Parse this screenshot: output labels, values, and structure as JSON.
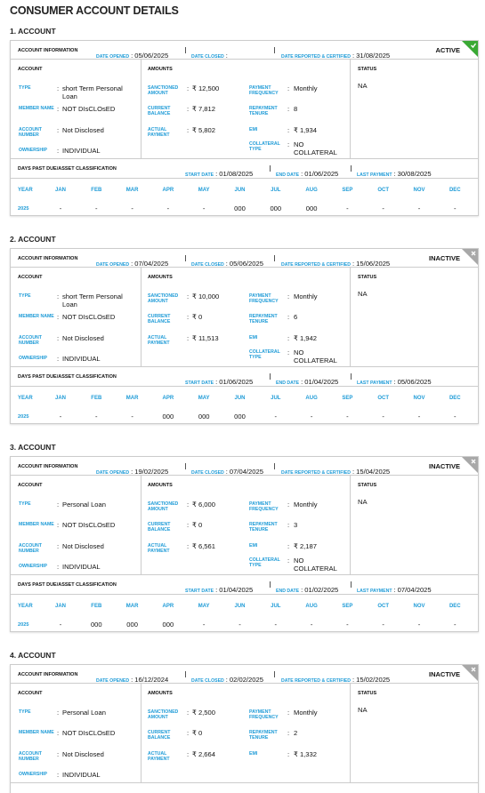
{
  "title": "CONSUMER ACCOUNT DETAILS",
  "labels": {
    "info": "ACCOUNT INFORMATION",
    "date_opened": "DATE OPENED",
    "date_closed": "DATE CLOSED",
    "date_reported": "DATE REPORTED & CERTIFIED",
    "account_col": "ACCOUNT",
    "amounts": "AMOUNTS",
    "status": "STATUS",
    "type": "TYPE",
    "member_name": "MEMBER NAME",
    "account_number": "ACCOUNT NUMBER",
    "ownership": "OWNERSHIP",
    "sanctioned": "SANCTIONED AMOUNT",
    "current_balance": "CURRENT BALANCE",
    "actual_payment": "ACTUAL PAYMENT",
    "payment_frequency": "PAYMENT FREQUENCY",
    "repayment_tenure": "REPAYMENT TENURE",
    "emi": "EMI",
    "collateral_type": "COLLATERAL TYPE",
    "dpd": "DAYS PAST DUE/ASSET CLASSIFICATION",
    "start_date": "START DATE",
    "end_date": "END DATE",
    "last_payment": "LAST PAYMENT",
    "sep": ":",
    "year": "YEAR",
    "months": [
      "JAN",
      "FEB",
      "MAR",
      "APR",
      "MAY",
      "JUN",
      "JUL",
      "AUG",
      "SEP",
      "OCT",
      "NOV",
      "DEC"
    ]
  },
  "accounts": [
    {
      "heading": "1. ACCOUNT",
      "date_opened": "05/06/2025",
      "date_reported": "31/08/2025",
      "badge": "ACTIVE",
      "type": "short Term Personal Loan",
      "member_name": "NOT DIsCLOsED",
      "account_number": "Not Disclosed",
      "ownership": "INDIVIDUAL",
      "sanctioned": "₹ 12,500",
      "current_balance": "₹ 7,812",
      "actual_payment": "₹ 5,802",
      "payment_frequency": "Monthly",
      "repayment_tenure": "8",
      "emi": "₹ 1,934",
      "collateral_type": "NO COLLATERAL",
      "status": "NA",
      "dpd": {
        "start_date": "01/08/2025",
        "end_date": "01/06/2025",
        "last_payment": "30/08/2025",
        "year": "2025",
        "months": [
          "-",
          "-",
          "-",
          "-",
          "-",
          "000",
          "000",
          "000",
          "-",
          "-",
          "-",
          "-"
        ]
      }
    },
    {
      "heading": "2. ACCOUNT",
      "date_opened": "07/04/2025",
      "date_closed": "05/06/2025",
      "date_reported": "15/06/2025",
      "badge": "INACTIVE",
      "type": "short Term Personal Loan",
      "member_name": "NOT DIsCLOsED",
      "account_number": "Not Disclosed",
      "ownership": "INDIVIDUAL",
      "sanctioned": "₹ 10,000",
      "current_balance": "₹ 0",
      "actual_payment": "₹ 11,513",
      "payment_frequency": "Monthly",
      "repayment_tenure": "6",
      "emi": "₹ 1,942",
      "collateral_type": "NO COLLATERAL",
      "status": "NA",
      "dpd": {
        "start_date": "01/06/2025",
        "end_date": "01/04/2025",
        "last_payment": "05/06/2025",
        "year": "2025",
        "months": [
          "-",
          "-",
          "-",
          "000",
          "000",
          "000",
          "-",
          "-",
          "-",
          "-",
          "-",
          "-"
        ]
      }
    },
    {
      "heading": "3. ACCOUNT",
      "date_opened": "19/02/2025",
      "date_closed": "07/04/2025",
      "date_reported": "15/04/2025",
      "badge": "INACTIVE",
      "type": "Personal Loan",
      "member_name": "NOT DIsCLOsED",
      "account_number": "Not Disclosed",
      "ownership": "INDIVIDUAL",
      "sanctioned": "₹ 6,000",
      "current_balance": "₹ 0",
      "actual_payment": "₹ 6,561",
      "payment_frequency": "Monthly",
      "repayment_tenure": "3",
      "emi": "₹ 2,187",
      "collateral_type": "NO COLLATERAL",
      "status": "NA",
      "dpd": {
        "start_date": "01/04/2025",
        "end_date": "01/02/2025",
        "last_payment": "07/04/2025",
        "year": "2025",
        "months": [
          "-",
          "000",
          "000",
          "000",
          "-",
          "-",
          "-",
          "-",
          "-",
          "-",
          "-",
          "-"
        ]
      }
    },
    {
      "heading": "4. ACCOUNT",
      "date_opened": "16/12/2024",
      "date_closed": "02/02/2025",
      "date_reported": "15/02/2025",
      "badge": "INACTIVE",
      "type": "Personal Loan",
      "member_name": "NOT DIsCLOsED",
      "account_number": "Not Disclosed",
      "ownership": "INDIVIDUAL",
      "sanctioned": "₹ 2,500",
      "current_balance": "₹ 0",
      "actual_payment": "₹ 2,664",
      "payment_frequency": "Monthly",
      "repayment_tenure": "2",
      "emi": "₹ 1,332",
      "status": "NA"
    }
  ]
}
